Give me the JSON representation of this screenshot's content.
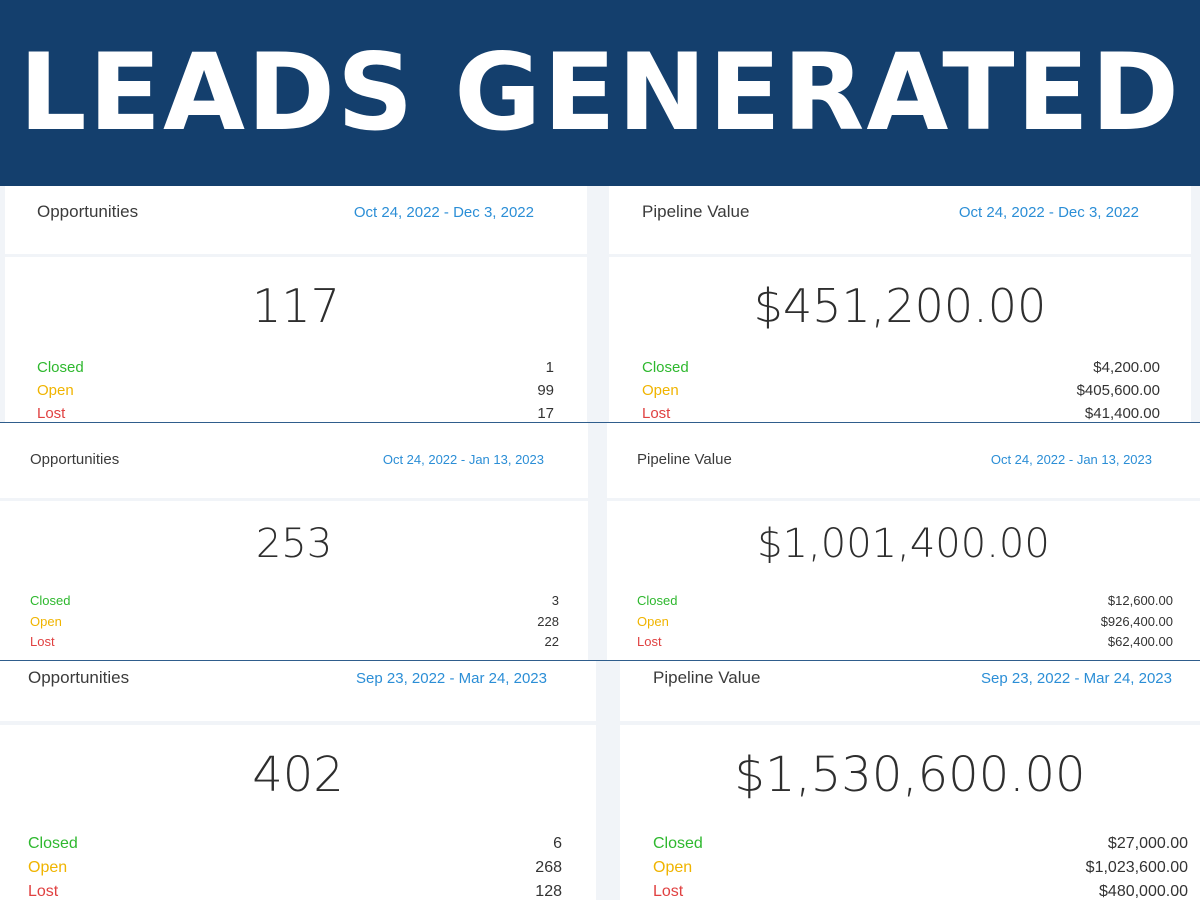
{
  "banner": {
    "title": "LEADS GENERATED"
  },
  "colors": {
    "banner_bg": "#143f6d",
    "closed": "#2eb82e",
    "open": "#f0b400",
    "lost": "#e04141",
    "date": "#2b8ed6"
  },
  "sections": [
    {
      "opportunities": {
        "title": "Opportunities",
        "date_range": "Oct 24, 2022 - Dec 3, 2022",
        "total": "117",
        "rows": [
          {
            "label": "Closed",
            "value": "1"
          },
          {
            "label": "Open",
            "value": "99"
          },
          {
            "label": "Lost",
            "value": "17"
          }
        ]
      },
      "pipeline": {
        "title": "Pipeline Value",
        "date_range": "Oct 24, 2022 - Dec 3, 2022",
        "total": "$451,200.00",
        "rows": [
          {
            "label": "Closed",
            "value": "$4,200.00"
          },
          {
            "label": "Open",
            "value": "$405,600.00"
          },
          {
            "label": "Lost",
            "value": "$41,400.00"
          }
        ]
      }
    },
    {
      "opportunities": {
        "title": "Opportunities",
        "date_range": "Oct 24, 2022 - Jan 13, 2023",
        "total": "253",
        "rows": [
          {
            "label": "Closed",
            "value": "3"
          },
          {
            "label": "Open",
            "value": "228"
          },
          {
            "label": "Lost",
            "value": "22"
          }
        ]
      },
      "pipeline": {
        "title": "Pipeline Value",
        "date_range": "Oct 24, 2022 - Jan 13, 2023",
        "total": "$1,001,400.00",
        "rows": [
          {
            "label": "Closed",
            "value": "$12,600.00"
          },
          {
            "label": "Open",
            "value": "$926,400.00"
          },
          {
            "label": "Lost",
            "value": "$62,400.00"
          }
        ]
      }
    },
    {
      "opportunities": {
        "title": "Opportunities",
        "date_range": "Sep 23, 2022 - Mar 24, 2023",
        "total": "402",
        "rows": [
          {
            "label": "Closed",
            "value": "6"
          },
          {
            "label": "Open",
            "value": "268"
          },
          {
            "label": "Lost",
            "value": "128"
          }
        ]
      },
      "pipeline": {
        "title": "Pipeline Value",
        "date_range": "Sep 23, 2022 - Mar 24, 2023",
        "total": "$1,530,600.00",
        "rows": [
          {
            "label": "Closed",
            "value": "$27,000.00"
          },
          {
            "label": "Open",
            "value": "$1,023,600.00"
          },
          {
            "label": "Lost",
            "value": "$480,000.00"
          }
        ]
      }
    }
  ]
}
